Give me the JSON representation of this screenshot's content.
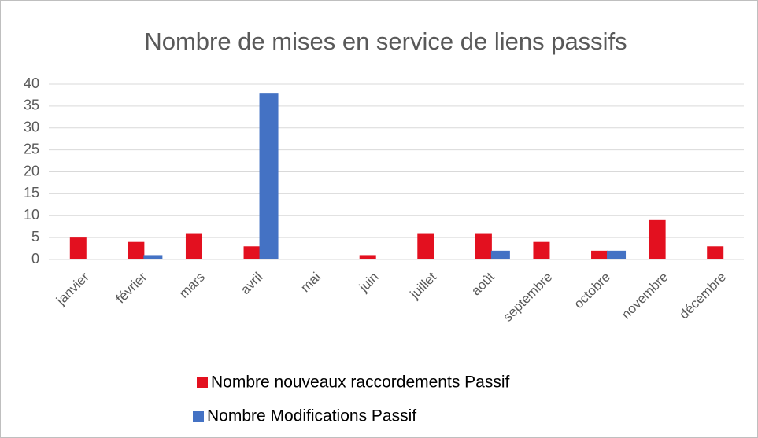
{
  "chart_data": {
    "type": "bar",
    "title": "Nombre de mises en service de liens passifs",
    "categories": [
      "janvier",
      "février",
      "mars",
      "avril",
      "mai",
      "juin",
      "juillet",
      "août",
      "septembre",
      "octobre",
      "novembre",
      "décembre"
    ],
    "series": [
      {
        "name": "Nombre nouveaux raccordements Passif",
        "color": "#e3101f",
        "values": [
          5,
          4,
          6,
          3,
          null,
          1,
          6,
          6,
          4,
          2,
          9,
          3
        ]
      },
      {
        "name": "Nombre Modifications Passif",
        "color": "#4472c4",
        "values": [
          null,
          1,
          null,
          38,
          null,
          null,
          null,
          2,
          null,
          2,
          null,
          null
        ]
      }
    ],
    "ylim": [
      0,
      40
    ],
    "yticks": [
      0,
      5,
      10,
      15,
      20,
      25,
      30,
      35,
      40
    ],
    "grid": true
  }
}
